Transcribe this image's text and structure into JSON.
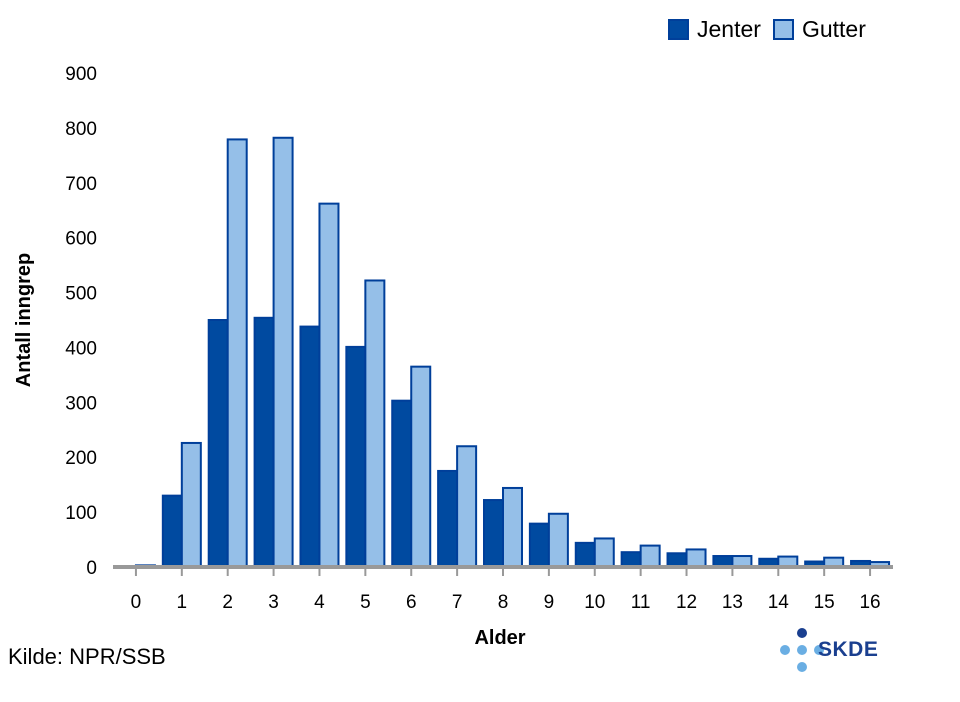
{
  "source_label": "Kilde: NPR/SSB",
  "logo_text": "SKDE",
  "colors": {
    "jenter": "#004aa0",
    "gutter": "#95bfe8",
    "border": "#003f9a",
    "axis": "#999999"
  },
  "chart_data": {
    "type": "bar",
    "title": "",
    "xlabel": "Alder",
    "ylabel": "Antall inngrep",
    "categories": [
      "0",
      "1",
      "2",
      "3",
      "4",
      "5",
      "6",
      "7",
      "8",
      "9",
      "10",
      "11",
      "12",
      "13",
      "14",
      "15",
      "16"
    ],
    "series": [
      {
        "name": "Jenter",
        "values": [
          1,
          130,
          450,
          454,
          438,
          401,
          303,
          175,
          122,
          79,
          44,
          27,
          25,
          20,
          15,
          10,
          11
        ]
      },
      {
        "name": "Gutter",
        "values": [
          3,
          226,
          779,
          782,
          662,
          522,
          365,
          220,
          144,
          97,
          52,
          39,
          32,
          20,
          19,
          17,
          9
        ]
      }
    ],
    "ylim": [
      0,
      900
    ],
    "yticks": [
      "0",
      "100",
      "200",
      "300",
      "400",
      "500",
      "600",
      "700",
      "800",
      "900"
    ],
    "legend": "top-right",
    "grid": false
  }
}
